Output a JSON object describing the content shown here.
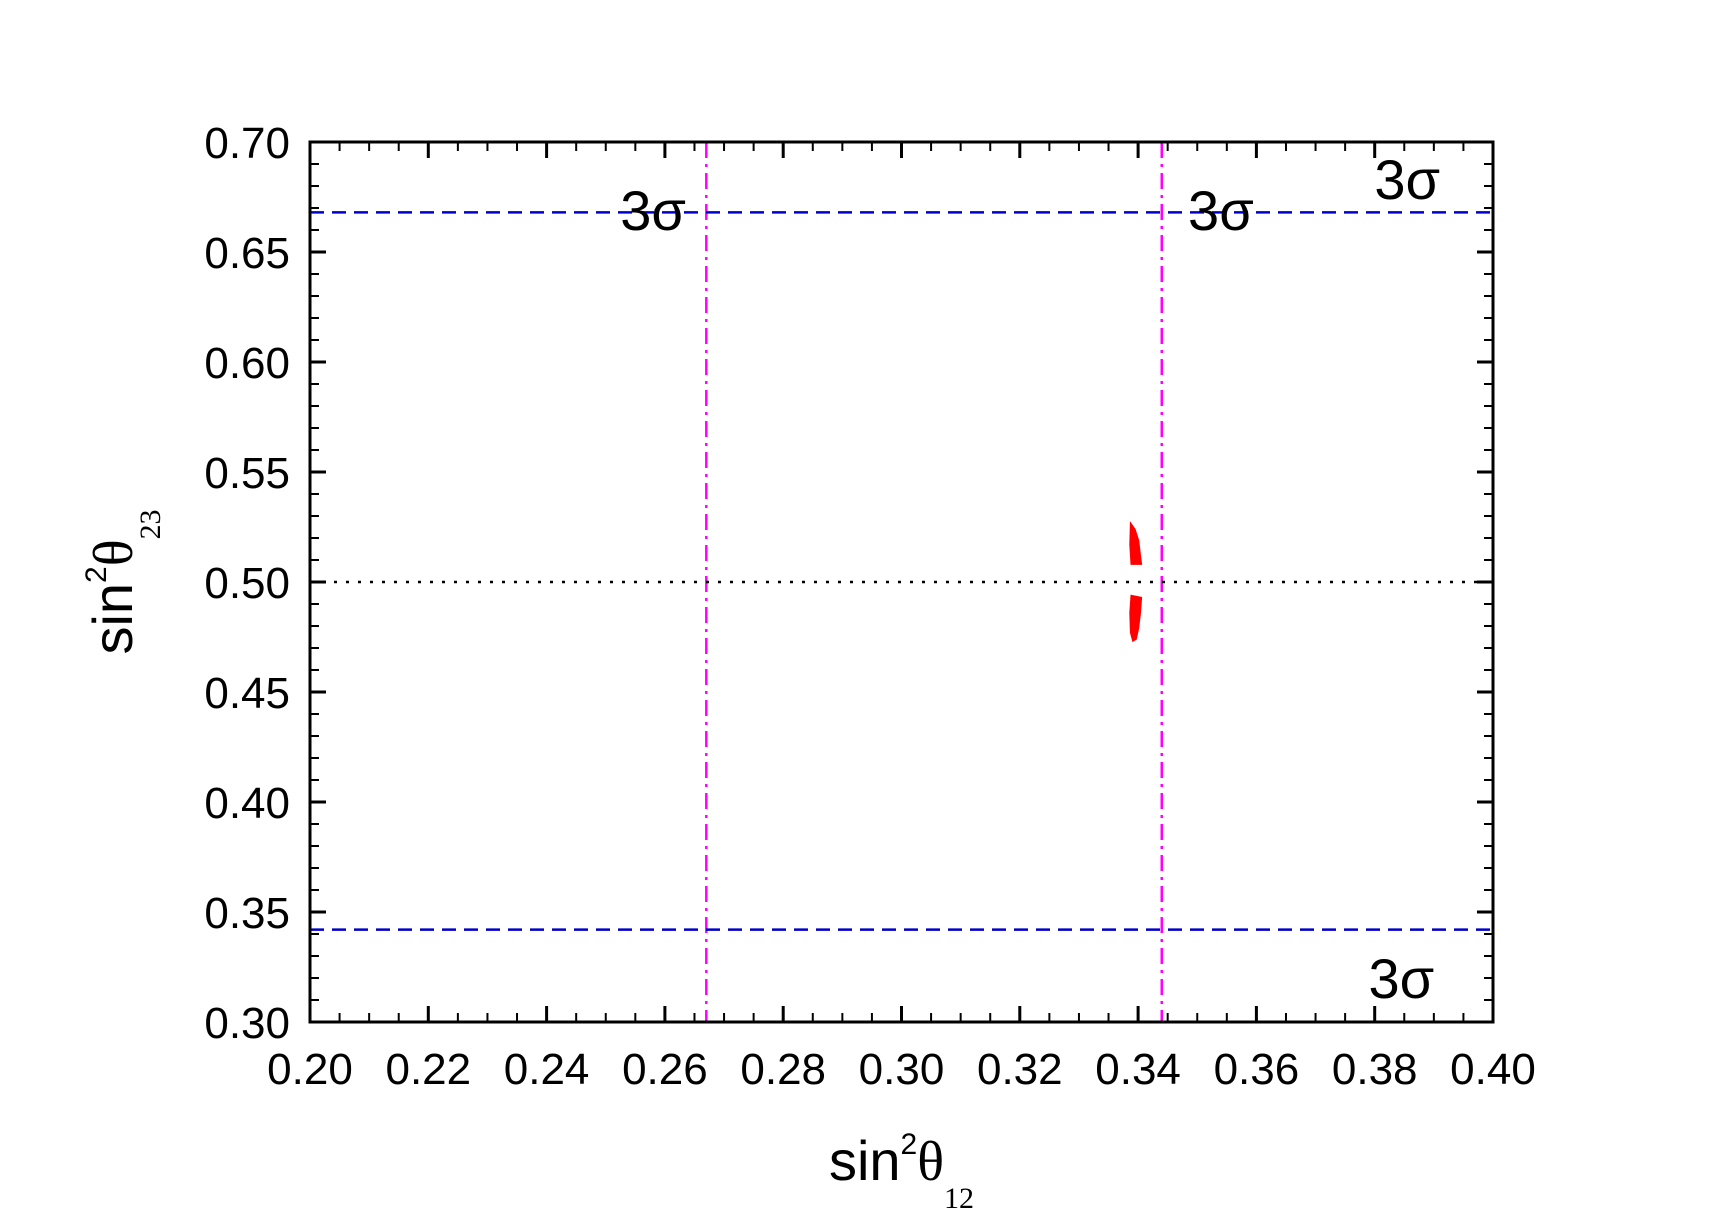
{
  "chart_data": {
    "type": "scatter",
    "x_axis": {
      "label_main": "sin",
      "label_sup": "2",
      "label_symbol": "θ",
      "label_sub": "12",
      "range": [
        0.2,
        0.4
      ],
      "ticks": [
        "0.20",
        "0.22",
        "0.24",
        "0.26",
        "0.28",
        "0.30",
        "0.32",
        "0.34",
        "0.36",
        "0.38",
        "0.40"
      ],
      "major_step": 0.02,
      "minor_step": 0.005
    },
    "y_axis": {
      "label_main": "sin",
      "label_sup": "2",
      "label_symbol": "θ",
      "label_sub": "23",
      "range": [
        0.3,
        0.7
      ],
      "ticks": [
        "0.30",
        "0.35",
        "0.40",
        "0.45",
        "0.50",
        "0.55",
        "0.60",
        "0.65",
        "0.70"
      ],
      "major_step": 0.05,
      "minor_step": 0.01
    },
    "reference_lines": [
      {
        "orientation": "vertical",
        "value": 0.267,
        "style": "dash-dot",
        "color": "#ff00ff",
        "label": "3σ",
        "label_pos": [
          0.258,
          0.66
        ]
      },
      {
        "orientation": "vertical",
        "value": 0.344,
        "style": "dash-dot",
        "color": "#ff00ff",
        "label": "3σ",
        "label_pos": [
          0.354,
          0.66
        ]
      },
      {
        "orientation": "horizontal",
        "value": 0.668,
        "style": "dashed",
        "color": "#0000cc",
        "label": "3σ",
        "label_pos": [
          0.3855,
          0.674
        ]
      },
      {
        "orientation": "horizontal",
        "value": 0.342,
        "style": "dashed",
        "color": "#0000cc",
        "label": "3σ",
        "label_pos": [
          0.3845,
          0.311
        ]
      },
      {
        "orientation": "horizontal",
        "value": 0.5,
        "style": "dotted",
        "color": "#000000",
        "label": ""
      }
    ],
    "regions": [
      {
        "name": "upper",
        "color": "#ff0000",
        "polygon": [
          [
            0.3387,
            0.527
          ],
          [
            0.3395,
            0.524
          ],
          [
            0.3401,
            0.519
          ],
          [
            0.3404,
            0.512
          ],
          [
            0.3406,
            0.508
          ],
          [
            0.3388,
            0.508
          ],
          [
            0.3386,
            0.517
          ]
        ]
      },
      {
        "name": "lower",
        "color": "#ff0000",
        "polygon": [
          [
            0.3388,
            0.494
          ],
          [
            0.3406,
            0.493
          ],
          [
            0.3404,
            0.486
          ],
          [
            0.3401,
            0.479
          ],
          [
            0.3397,
            0.474
          ],
          [
            0.3391,
            0.473
          ],
          [
            0.3387,
            0.477
          ],
          [
            0.3386,
            0.486
          ]
        ]
      }
    ],
    "grid": false,
    "legend": "none"
  }
}
